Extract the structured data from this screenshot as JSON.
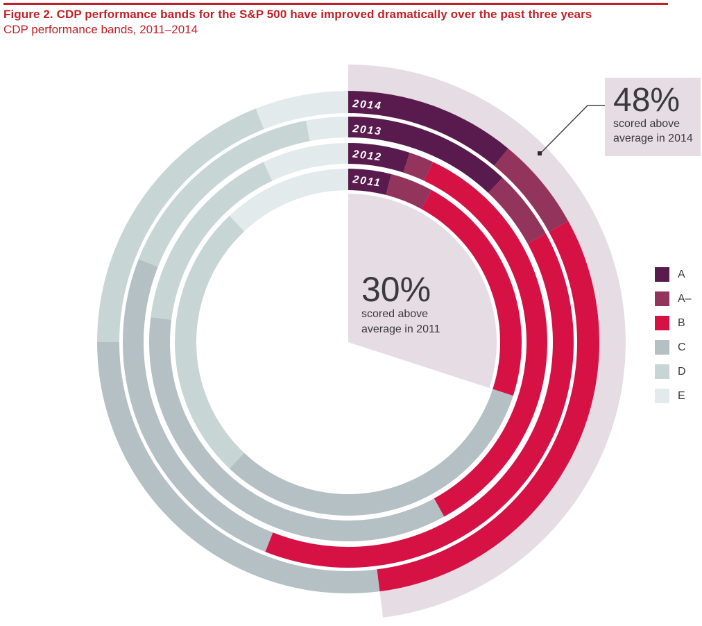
{
  "header": {
    "title": "Figure 2. CDP performance bands for the S&P 500 have improved dramatically over the past three years",
    "subtitle": "CDP performance bands, 2011–2014"
  },
  "callout": {
    "value": "48%",
    "line1": "scored above",
    "line2": "average in 2014"
  },
  "center_label": {
    "value": "30%",
    "line1": "scored above",
    "line2": "average in 2011"
  },
  "legend": {
    "items": [
      {
        "label": "A",
        "color": "#591b4e"
      },
      {
        "label": "A–",
        "color": "#93345c"
      },
      {
        "label": "B",
        "color": "#d61245"
      },
      {
        "label": "C",
        "color": "#b4c0c4"
      },
      {
        "label": "D",
        "color": "#c7d5d4"
      },
      {
        "label": "E",
        "color": "#e2eaeb"
      }
    ]
  },
  "chart_data": {
    "type": "donut-rings",
    "description": "Concentric donut rings, one per year (outermost 2014, innermost 2011). Each ring is split clockwise from 12 o'clock into CDP performance bands A, A–, B, C, D, E (percent of companies).",
    "bands": [
      "A",
      "A–",
      "B",
      "C",
      "D",
      "E"
    ],
    "band_colors": [
      "#591b4e",
      "#93345c",
      "#d61245",
      "#b4c0c4",
      "#c7d5d4",
      "#e2eaeb"
    ],
    "rings_outer_to_inner": [
      "2014",
      "2013",
      "2012",
      "2011"
    ],
    "series": [
      {
        "year": "2014",
        "values": [
          11,
          6,
          31,
          27,
          19,
          6
        ]
      },
      {
        "year": "2013",
        "values": [
          12,
          5,
          39,
          25,
          16,
          3
        ]
      },
      {
        "year": "2012",
        "values": [
          5,
          2,
          35,
          35,
          16,
          7
        ]
      },
      {
        "year": "2011",
        "values": [
          4,
          4,
          22,
          32,
          26,
          12
        ]
      }
    ],
    "highlights": {
      "above_average_2014_pct": 48,
      "above_average_2011_pct": 30,
      "highlight_color": "#e6dde4"
    },
    "legend_position": "right",
    "start_angle_deg": 0,
    "direction": "clockwise"
  }
}
